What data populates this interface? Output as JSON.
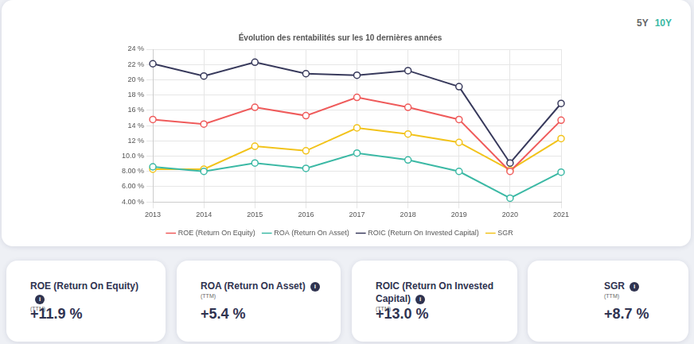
{
  "period_buttons": [
    "5Y",
    "10Y"
  ],
  "chart_data": {
    "type": "line",
    "title": "Évolution des rentabilités sur les 10 dernières années",
    "categories": [
      "2013",
      "2014",
      "2015",
      "2016",
      "2017",
      "2018",
      "2019",
      "2020",
      "2021"
    ],
    "series": [
      {
        "name": "ROE (Return On Equity)",
        "color": "#ef5b5b",
        "values": [
          14.8,
          14.2,
          16.4,
          15.3,
          17.7,
          16.4,
          14.8,
          8.0,
          14.7
        ]
      },
      {
        "name": "ROA (Return On Asset)",
        "color": "#3cb9a5",
        "values": [
          8.6,
          8.0,
          9.1,
          8.4,
          10.4,
          9.5,
          8.0,
          4.5,
          7.9
        ]
      },
      {
        "name": "ROIC (Return On Invested Capital)",
        "color": "#383a5c",
        "values": [
          22.1,
          20.5,
          22.3,
          20.8,
          20.6,
          21.2,
          19.1,
          9.1,
          16.9
        ]
      },
      {
        "name": "SGR",
        "color": "#f2c31b",
        "values": [
          8.3,
          8.3,
          11.3,
          10.7,
          13.7,
          12.9,
          11.8,
          8.2,
          12.3
        ]
      }
    ],
    "ylim": [
      4,
      24
    ],
    "yticks": [
      {
        "value": 4,
        "label": "4.00 %"
      },
      {
        "value": 6,
        "label": "6.00 %"
      },
      {
        "value": 8,
        "label": "8.00 %"
      },
      {
        "value": 10,
        "label": "10.0 %"
      },
      {
        "value": 12,
        "label": "12 %"
      },
      {
        "value": 14,
        "label": "14 %"
      },
      {
        "value": 16,
        "label": "16 %"
      },
      {
        "value": 18,
        "label": "18 %"
      },
      {
        "value": 20,
        "label": "20 %"
      },
      {
        "value": 22,
        "label": "22 %"
      },
      {
        "value": 24,
        "label": "24 %"
      }
    ],
    "grid": true,
    "legend": "bottom",
    "marker": "circle"
  },
  "kpis": [
    {
      "title": "ROE (Return On Equity)",
      "subtitle": "(TTM)",
      "value": "+11.9 %"
    },
    {
      "title": "ROA (Return On Asset)",
      "subtitle": "(TTM)",
      "value": "+5.4 %"
    },
    {
      "title": "ROIC (Return On Invested Capital)",
      "subtitle": "(TTM)",
      "value": "+13.0 %"
    },
    {
      "title": "SGR",
      "subtitle": "(TTM)",
      "value": "+8.7 %"
    }
  ]
}
